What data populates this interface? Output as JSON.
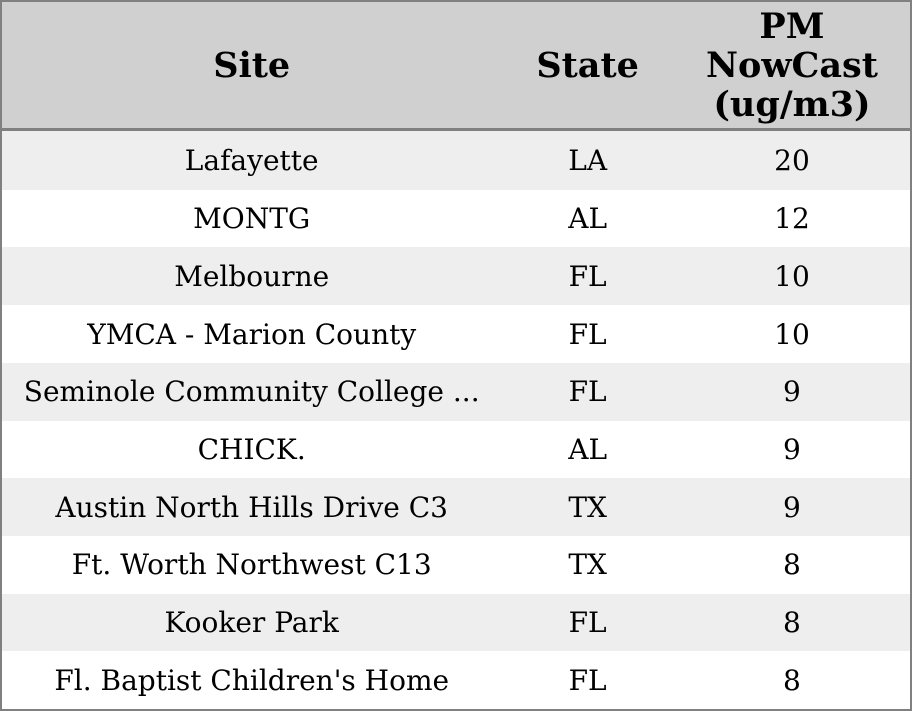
{
  "colors": {
    "border": "#808080",
    "header_background": "#d0d0d0",
    "row_stripe_background": "#eeeeee",
    "row_background": "#ffffff",
    "text": "#000000"
  },
  "chart_data": {
    "type": "table",
    "columns": [
      {
        "id": "site",
        "label": "Site",
        "lines": [
          "Site"
        ]
      },
      {
        "id": "state",
        "label": "State",
        "lines": [
          "State"
        ]
      },
      {
        "id": "pm_nowcast",
        "label": "PM NowCast (ug/m3)",
        "lines": [
          "PM",
          "NowCast",
          "(ug/m3)"
        ]
      }
    ],
    "rows": [
      {
        "site": "Lafayette",
        "state": "LA",
        "pm_nowcast": "20"
      },
      {
        "site": "MONTG",
        "state": "AL",
        "pm_nowcast": "12"
      },
      {
        "site": "Melbourne",
        "state": "FL",
        "pm_nowcast": "10"
      },
      {
        "site": "YMCA - Marion County",
        "state": "FL",
        "pm_nowcast": "10"
      },
      {
        "site": "Seminole Community College ...",
        "state": "FL",
        "pm_nowcast": "9"
      },
      {
        "site": "CHICK.",
        "state": "AL",
        "pm_nowcast": "9"
      },
      {
        "site": "Austin North Hills Drive C3",
        "state": "TX",
        "pm_nowcast": "9"
      },
      {
        "site": "Ft. Worth Northwest C13",
        "state": "TX",
        "pm_nowcast": "8"
      },
      {
        "site": "Kooker Park",
        "state": "FL",
        "pm_nowcast": "8"
      },
      {
        "site": "Fl. Baptist Children's Home",
        "state": "FL",
        "pm_nowcast": "8"
      }
    ]
  }
}
